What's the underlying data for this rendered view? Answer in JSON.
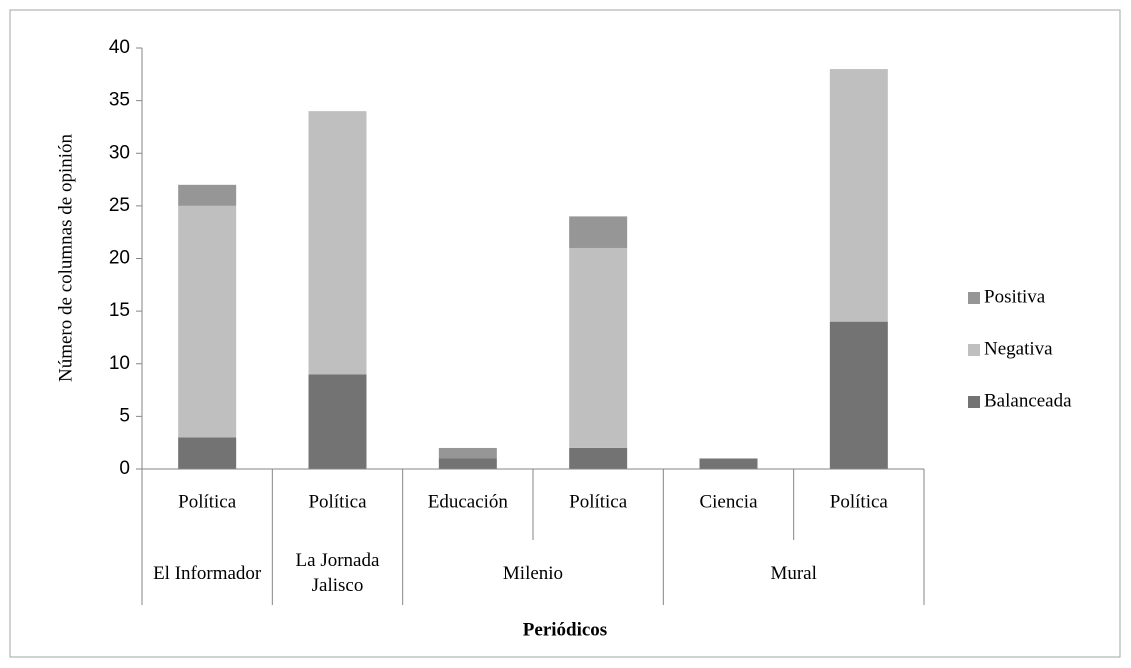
{
  "chart_data": {
    "type": "stacked_bar",
    "x_label": "Periódicos",
    "y_label": "Número de columnas de opinión",
    "categories": [
      "Política",
      "Política",
      "Educación",
      "Política",
      "Ciencia",
      "Política"
    ],
    "groups": [
      {
        "label": "El Informador",
        "span": 1
      },
      {
        "label": "La Jornada Jalisco",
        "span": 1
      },
      {
        "label": "Milenio",
        "span": 2
      },
      {
        "label": "Mural",
        "span": 2
      }
    ],
    "series": [
      {
        "name": "Balanceada",
        "color": "#737373",
        "values": [
          3,
          9,
          1,
          2,
          1,
          14
        ]
      },
      {
        "name": "Negativa",
        "color": "#bfbfbf",
        "values": [
          22,
          25,
          0,
          19,
          0,
          24
        ]
      },
      {
        "name": "Positiva",
        "color": "#969696",
        "values": [
          2,
          0,
          1,
          3,
          0,
          0
        ]
      }
    ],
    "ylim": [
      0,
      40
    ],
    "yticks": [
      0,
      5,
      10,
      15,
      20,
      25,
      30,
      35,
      40
    ],
    "legend": "right"
  }
}
